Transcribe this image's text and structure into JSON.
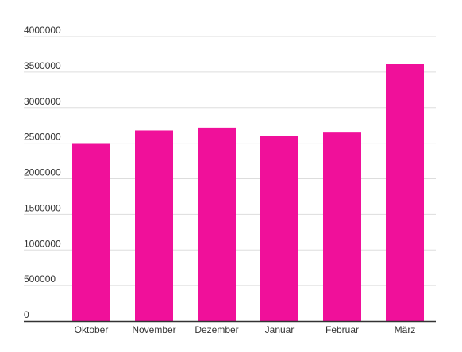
{
  "chart_data": {
    "type": "bar",
    "title": "",
    "xlabel": "",
    "ylabel": "",
    "categories": [
      "Oktober",
      "November",
      "Dezember",
      "Januar",
      "Februar",
      "März"
    ],
    "values": [
      2490000,
      2680000,
      2720000,
      2600000,
      2650000,
      3610000
    ],
    "ylim": [
      0,
      4000000
    ],
    "yticks": [
      "0",
      "500000",
      "1000000",
      "1500000",
      "2000000",
      "2500000",
      "3000000",
      "3500000",
      "4000000"
    ],
    "grid": true,
    "legend": "none",
    "bar_color": "#f0109a"
  }
}
